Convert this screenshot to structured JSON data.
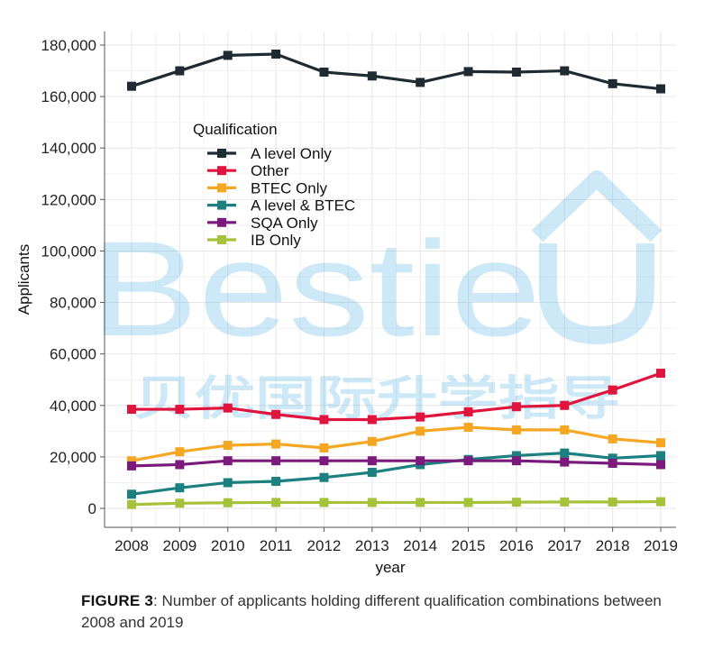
{
  "chart_data": {
    "type": "line",
    "xlabel": "year",
    "ylabel": "Applicants",
    "x": [
      2008,
      2009,
      2010,
      2011,
      2012,
      2013,
      2014,
      2015,
      2016,
      2017,
      2018,
      2019
    ],
    "ylim": [
      0,
      180000
    ],
    "yticks": [
      0,
      20000,
      40000,
      60000,
      80000,
      100000,
      120000,
      140000,
      160000,
      180000
    ],
    "ytick_labels": [
      "0",
      "20,000",
      "40,000",
      "60,000",
      "80,000",
      "100,000",
      "120,000",
      "140,000",
      "160,000",
      "180,000"
    ],
    "grid": true,
    "legend": {
      "title": "Qualification",
      "placement": "upper-left inside plot"
    },
    "series": [
      {
        "name": "A level Only",
        "color": "#1f2b33",
        "values": [
          164000,
          170000,
          176000,
          176500,
          169500,
          168000,
          165500,
          169700,
          169500,
          170000,
          165000,
          163000
        ]
      },
      {
        "name": "Other",
        "color": "#e0143c",
        "values": [
          38500,
          38500,
          39000,
          36500,
          34500,
          34500,
          35500,
          37500,
          39500,
          40000,
          46000,
          52500
        ]
      },
      {
        "name": "BTEC Only",
        "color": "#f5a623",
        "values": [
          18500,
          22000,
          24500,
          25000,
          23500,
          26000,
          30000,
          31500,
          30500,
          30500,
          27000,
          25500
        ]
      },
      {
        "name": "A level & BTEC",
        "color": "#1c7f80",
        "values": [
          5500,
          8000,
          10000,
          10500,
          12000,
          14000,
          17000,
          19000,
          20500,
          21500,
          19500,
          20500
        ]
      },
      {
        "name": "SQA Only",
        "color": "#7b1a7c",
        "values": [
          16500,
          17000,
          18500,
          18500,
          18500,
          18500,
          18500,
          18500,
          18500,
          18000,
          17500,
          17000
        ]
      },
      {
        "name": "IB Only",
        "color": "#a5c23a",
        "values": [
          1500,
          2000,
          2200,
          2300,
          2300,
          2300,
          2300,
          2300,
          2400,
          2500,
          2500,
          2600
        ]
      }
    ]
  },
  "watermark": {
    "brand": "BestieU",
    "subtitle": "贝优国际升学指导",
    "color": "#5bb4e6"
  },
  "caption": {
    "label": "FIGURE 3",
    "text": ": Number of applicants holding different qualification combinations between 2008 and 2019"
  }
}
